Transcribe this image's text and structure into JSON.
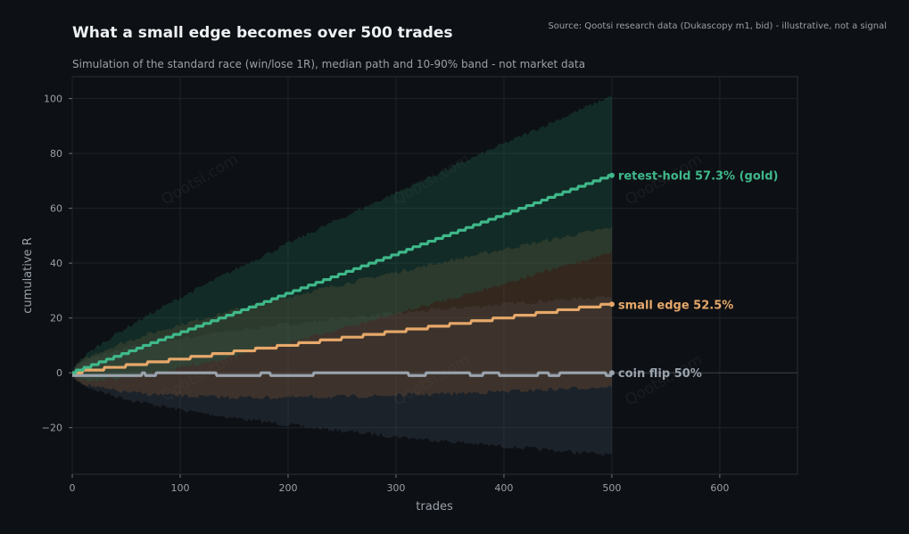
{
  "chart_data": {
    "type": "line",
    "title": "What a small edge becomes over 500 trades",
    "subtitle": "Simulation of the standard race (win/lose 1R), median path and 10-90% band - not market data",
    "source": "Source: Qootsi research data (Dukascopy m1, bid) - illustrative, not a signal",
    "watermark": "Qootsi.com",
    "xlabel": "trades",
    "ylabel": "cumulative R",
    "xlim": [
      0,
      672
    ],
    "ylim": [
      -37,
      108
    ],
    "xticks": [
      0,
      100,
      200,
      300,
      400,
      500,
      600
    ],
    "yticks": [
      -20,
      0,
      20,
      40,
      60,
      80,
      100
    ],
    "grid": true,
    "zero_line": true,
    "trades": 500,
    "series": [
      {
        "name": "coin flip 50%",
        "label": "coin flip 50%",
        "color": "#9aa3ad",
        "band_color": "#3a4452",
        "median_end": 0,
        "band_end": [
          -30,
          28
        ]
      },
      {
        "name": "small edge 52.5%",
        "label": "small edge 52.5%",
        "color": "#e6a86a",
        "band_color": "#7a5230",
        "median_end": 25,
        "band_end": [
          -5,
          53
        ]
      },
      {
        "name": "retest-hold 57.3% (gold)",
        "label": "retest-hold 57.3% (gold)",
        "color": "#3fb88a",
        "band_color": "#1e5e48",
        "median_end": 72,
        "band_end": [
          44,
          101
        ]
      }
    ]
  }
}
